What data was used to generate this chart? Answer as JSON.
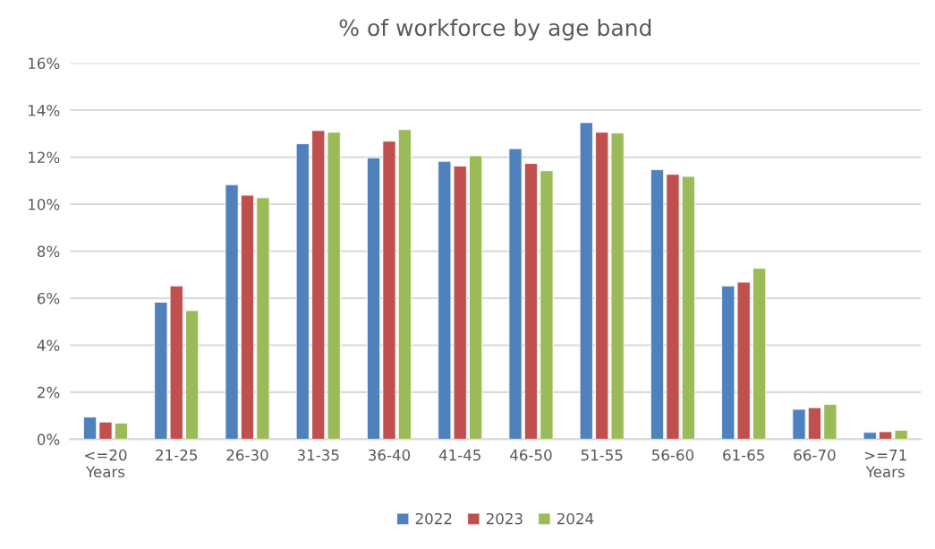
{
  "chart_data": {
    "type": "bar",
    "title": "% of workforce by age band",
    "categories": [
      "<=20\nYears",
      "21-25",
      "26-30",
      "31-35",
      "36-40",
      "41-45",
      "46-50",
      "51-55",
      "56-60",
      "61-65",
      "66-70",
      ">=71\nYears"
    ],
    "series": [
      {
        "name": "2022",
        "color": "#4f81bd",
        "values": [
          0.94,
          5.83,
          10.83,
          12.57,
          11.97,
          11.82,
          12.36,
          13.47,
          11.47,
          6.52,
          1.27,
          0.29
        ]
      },
      {
        "name": "2023",
        "color": "#c0504d",
        "values": [
          0.73,
          6.52,
          10.38,
          13.13,
          12.68,
          11.62,
          11.73,
          13.06,
          11.27,
          6.68,
          1.34,
          0.32
        ]
      },
      {
        "name": "2024",
        "color": "#9bbb59",
        "values": [
          0.68,
          5.47,
          10.27,
          13.06,
          13.17,
          12.06,
          11.42,
          13.03,
          11.18,
          7.27,
          1.48,
          0.38
        ]
      }
    ],
    "ylim": [
      0,
      16
    ],
    "yticks": [
      {
        "value": 0,
        "label": "0%"
      },
      {
        "value": 2,
        "label": "2%"
      },
      {
        "value": 4,
        "label": "4%"
      },
      {
        "value": 6,
        "label": "6%"
      },
      {
        "value": 8,
        "label": "8%"
      },
      {
        "value": 10,
        "label": "10%"
      },
      {
        "value": 12,
        "label": "12%"
      },
      {
        "value": 14,
        "label": "14%"
      },
      {
        "value": 16,
        "label": "16%"
      }
    ],
    "grid": "y",
    "legend": "bottom"
  }
}
